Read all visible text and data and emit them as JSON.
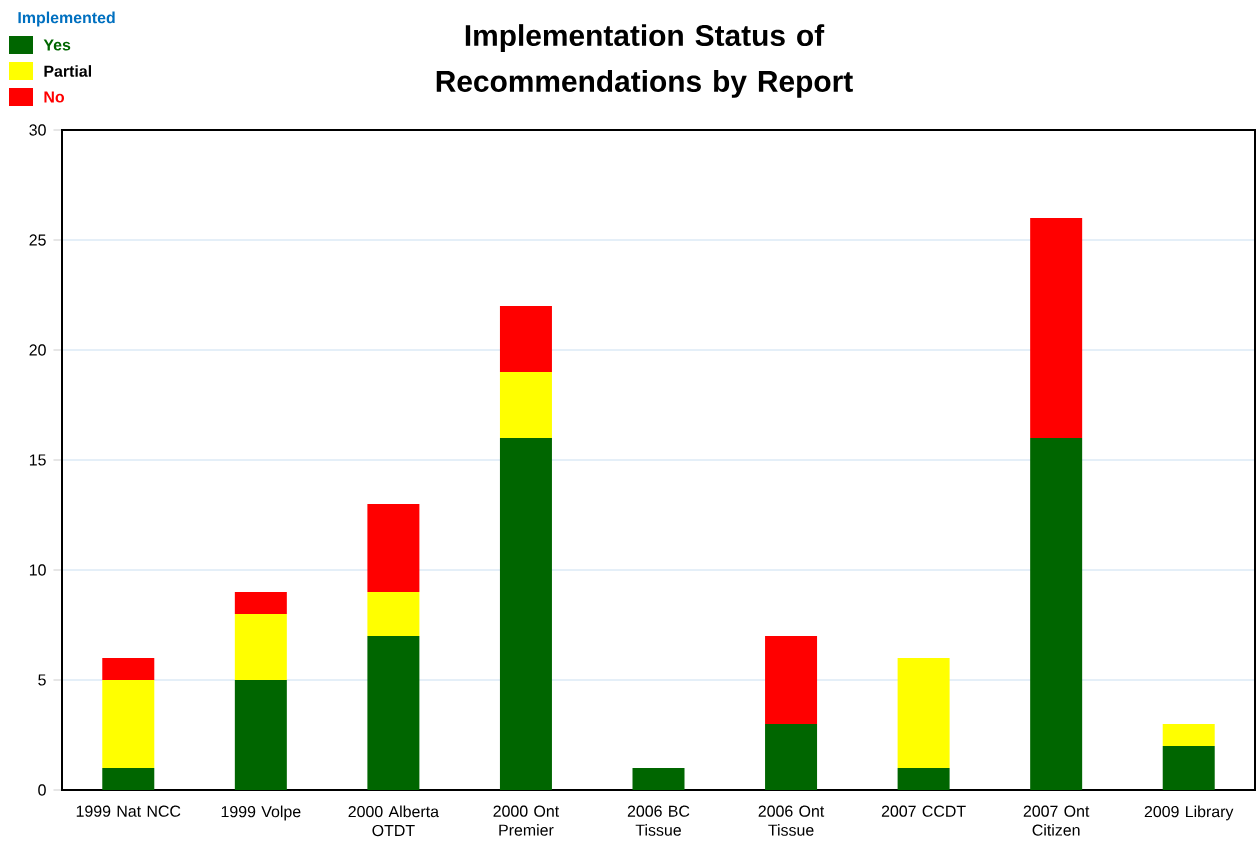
{
  "chart_data": {
    "type": "bar",
    "title": "Implementation Status of Recommendations by Report",
    "legend_title": "Implemented",
    "categories": [
      "1999 Nat NCC",
      "1999 Volpe",
      "2000 Alberta OTDT",
      "2000 Ont Premier",
      "2006 BC Tissue",
      "2006 Ont Tissue",
      "2007 CCDT",
      "2007 Ont Citizen",
      "2009 Library"
    ],
    "series": [
      {
        "name": "Yes",
        "color": "#006600",
        "values": [
          1,
          5,
          7,
          16,
          1,
          3,
          1,
          16,
          2
        ]
      },
      {
        "name": "Partial",
        "color": "#ffff00",
        "values": [
          4,
          3,
          2,
          3,
          0,
          0,
          5,
          0,
          1
        ]
      },
      {
        "name": "No",
        "color": "#ff0000",
        "values": [
          1,
          1,
          4,
          3,
          0,
          4,
          0,
          10,
          0
        ]
      }
    ],
    "stacked": true,
    "ylim": [
      0,
      30
    ],
    "yticks": [
      0,
      5,
      10,
      15,
      20,
      25,
      30
    ],
    "grid": "y",
    "legend": "top left"
  }
}
